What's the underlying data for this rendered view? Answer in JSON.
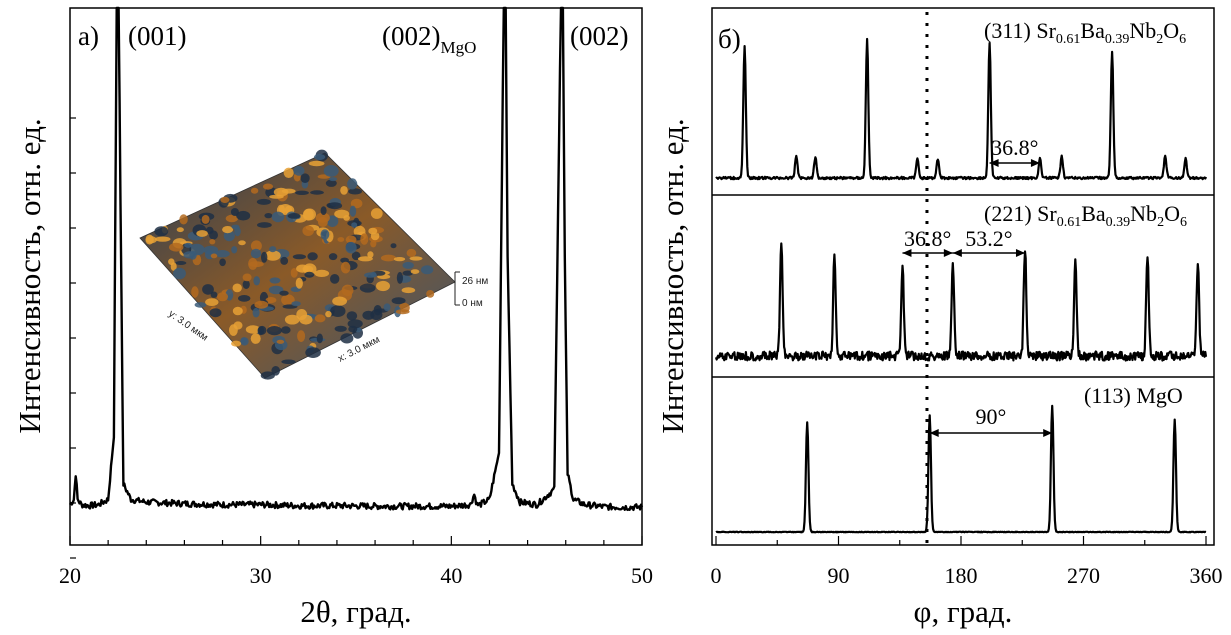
{
  "chart_data": [
    {
      "type": "line",
      "panel_label": "а)",
      "xlabel": "2θ, град.",
      "ylabel": "Интенсивность, отн. ед.",
      "xlim": [
        20,
        50
      ],
      "x_ticks": [
        "20",
        "30",
        "40",
        "50"
      ],
      "y_ticks_labeled": false,
      "series": [
        {
          "x": [
            20.0,
            20.2,
            20.3,
            20.4,
            20.6,
            21.0,
            21.5,
            22.0,
            22.3,
            22.45,
            22.55,
            22.65,
            22.8,
            23.2,
            24,
            26,
            28,
            30,
            32,
            34,
            36,
            38,
            40,
            41.0,
            41.2,
            41.35,
            41.5,
            42.0,
            42.5,
            42.75,
            42.85,
            42.95,
            43.2,
            43.6,
            44.5,
            45.4,
            45.75,
            45.85,
            45.95,
            46.1,
            46.4,
            47.0,
            48,
            49,
            50
          ],
          "y": [
            0.02,
            0.03,
            0.08,
            0.03,
            0.02,
            0.018,
            0.02,
            0.03,
            0.15,
            1.0,
            1.0,
            0.6,
            0.06,
            0.03,
            0.025,
            0.022,
            0.02,
            0.02,
            0.018,
            0.018,
            0.017,
            0.017,
            0.017,
            0.02,
            0.04,
            0.02,
            0.02,
            0.03,
            0.12,
            1.0,
            1.0,
            0.5,
            0.06,
            0.025,
            0.02,
            0.05,
            1.0,
            1.0,
            0.5,
            0.08,
            0.03,
            0.02,
            0.016,
            0.015,
            0.015
          ]
        }
      ],
      "annotations": [
        {
          "text": "(001)",
          "x": 22.55
        },
        {
          "text": "(002)",
          "sub": "MgO",
          "x": 42.85
        },
        {
          "text": "(002)",
          "x": 45.85
        }
      ],
      "inset": {
        "kind": "3D AFM surface image",
        "scale_max": "26 нм",
        "scale_min": "0  нм",
        "y_size": "y: 3.0  мкм",
        "x_size": "x: 3.0  мкм",
        "colors": [
          "#1f2f44",
          "#3a5a78",
          "#b36a1e",
          "#e8a135"
        ]
      }
    },
    {
      "type": "line",
      "panel_label": "б)",
      "xlabel": "φ, град.",
      "ylabel": "Интенсивность, отн. ед.",
      "xlim": [
        0,
        360
      ],
      "x_ticks": [
        "0",
        "90",
        "180",
        "270",
        "360"
      ],
      "vline_dotted_x": 155,
      "subplots": [
        {
          "name_main": "(311) Sr",
          "name_sub": [
            "0.61",
            "Ba",
            "0.39",
            "Nb",
            "2",
            "O",
            "6"
          ],
          "peaks": [
            [
              21,
              0.95
            ],
            [
              59,
              0.16
            ],
            [
              73,
              0.15
            ],
            [
              111,
              1.0
            ],
            [
              148,
              0.14
            ],
            [
              163,
              0.14
            ],
            [
              201,
              0.98
            ],
            [
              238,
              0.14
            ],
            [
              254,
              0.16
            ],
            [
              291,
              0.92
            ],
            [
              330,
              0.16
            ],
            [
              345,
              0.14
            ]
          ],
          "annotations": [
            {
              "text": "36.8°",
              "from": 201,
              "to": 238
            }
          ]
        },
        {
          "name_main": "(221) Sr",
          "name_sub": [
            "0.61",
            "Ba",
            "0.39",
            "Nb",
            "2",
            "O",
            "6"
          ],
          "peaks": [
            [
              48,
              0.9
            ],
            [
              87,
              0.78
            ],
            [
              137,
              0.72
            ],
            [
              174,
              0.72
            ],
            [
              227,
              0.85
            ],
            [
              264,
              0.77
            ],
            [
              317,
              0.8
            ],
            [
              354,
              0.73
            ]
          ],
          "annotations": [
            {
              "text": "36.8°",
              "from": 137,
              "to": 174
            },
            {
              "text": "53.2°",
              "from": 174,
              "to": 227
            }
          ]
        },
        {
          "name_main": "(113) MgO",
          "name_sub": [],
          "peaks": [
            [
              67,
              0.8
            ],
            [
              157,
              0.85
            ],
            [
              247,
              0.92
            ],
            [
              337,
              0.82
            ]
          ],
          "annotations": [
            {
              "text": "90°",
              "from": 157,
              "to": 247
            }
          ]
        }
      ]
    }
  ]
}
